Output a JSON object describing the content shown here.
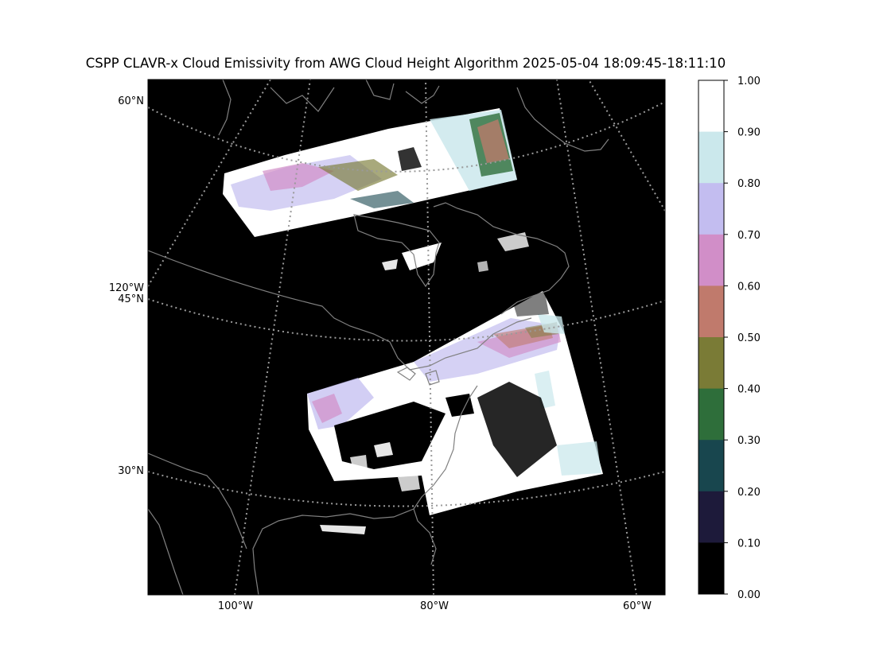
{
  "figure": {
    "title": "CSPP CLAVR-x Cloud Emissivity from AWG Cloud Height Algorithm 2025-05-04 18:09:45-18:11:10"
  },
  "map": {
    "projection": "Lambert conformal",
    "background_color": "#000000",
    "coastline_color": "#808080",
    "graticule_color": "#9a9a9a",
    "graticule_style": "dotted",
    "lat_labels": [
      "60°N",
      "120°W",
      "45°N",
      "30°N"
    ],
    "lon_labels": [
      "100°W",
      "80°W",
      "60°W"
    ]
  },
  "colorbar": {
    "ticks": [
      "1.00",
      "0.90",
      "0.80",
      "0.70",
      "0.60",
      "0.50",
      "0.40",
      "0.30",
      "0.20",
      "0.10",
      "0.00"
    ],
    "bins": [
      {
        "range": [
          0.9,
          1.0
        ],
        "color": "#ffffff"
      },
      {
        "range": [
          0.8,
          0.9
        ],
        "color": "#cbe8ec"
      },
      {
        "range": [
          0.7,
          0.8
        ],
        "color": "#c3bdf0"
      },
      {
        "range": [
          0.6,
          0.7
        ],
        "color": "#d18ec8"
      },
      {
        "range": [
          0.5,
          0.6
        ],
        "color": "#c07a6c"
      },
      {
        "range": [
          0.4,
          0.5
        ],
        "color": "#7a7b36"
      },
      {
        "range": [
          0.3,
          0.4
        ],
        "color": "#2e6e3a"
      },
      {
        "range": [
          0.2,
          0.3
        ],
        "color": "#18464e"
      },
      {
        "range": [
          0.1,
          0.2
        ],
        "color": "#1d1a3a"
      },
      {
        "range": [
          0.0,
          0.1
        ],
        "color": "#000000"
      }
    ]
  }
}
